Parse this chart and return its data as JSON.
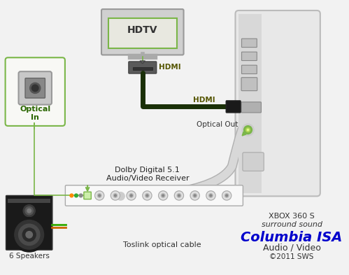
{
  "bg_color": "#f2f2f2",
  "hdtv_label": "HDTV",
  "hdmi_label1": "HDMI",
  "hdmi_label2": "HDMI",
  "optical_in_label": "Optical\nIn",
  "optical_out_label": "Optical Out",
  "receiver_label": "Dolby Digital 5.1\nAudio/Video Receiver",
  "cable_label": "Toslink optical cable",
  "speakers_label": "6 Speakers",
  "xbox_line1": "XBOX 360 S",
  "xbox_line2": "surround sound",
  "columbia_label": "Columbia ISA",
  "av_label": "Audio / Video",
  "copyright_label": "©2011 SWS",
  "green_color": "#7ab648",
  "dark_green": "#1a3a0a",
  "blue_color": "#0000cc",
  "cable_color": "#d8d8d8",
  "hdmi_cable_color": "#1a3008"
}
